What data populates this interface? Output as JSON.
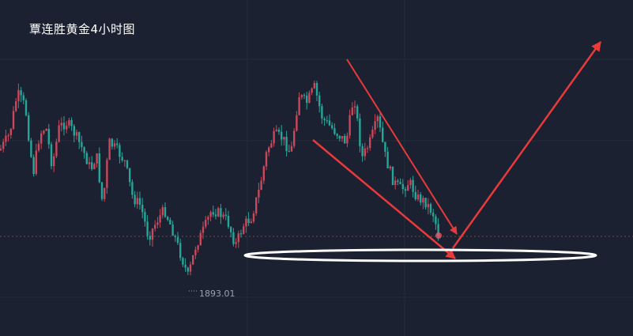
{
  "title": "覃连胜黄金4小时图",
  "chart_data": {
    "type": "candlestick",
    "title": "覃连胜黄金4小时图",
    "low_label": "1893.01",
    "colors": {
      "background": "#1b2130",
      "up": "#c9485b",
      "down": "#26a69a",
      "annotation": "#e83a3a",
      "ellipse": "#ffffff",
      "grid": "#2a3242"
    },
    "annotations": [
      "channel-upper-line",
      "channel-lower-line",
      "down-arrow",
      "up-arrow",
      "support-ellipse"
    ]
  }
}
